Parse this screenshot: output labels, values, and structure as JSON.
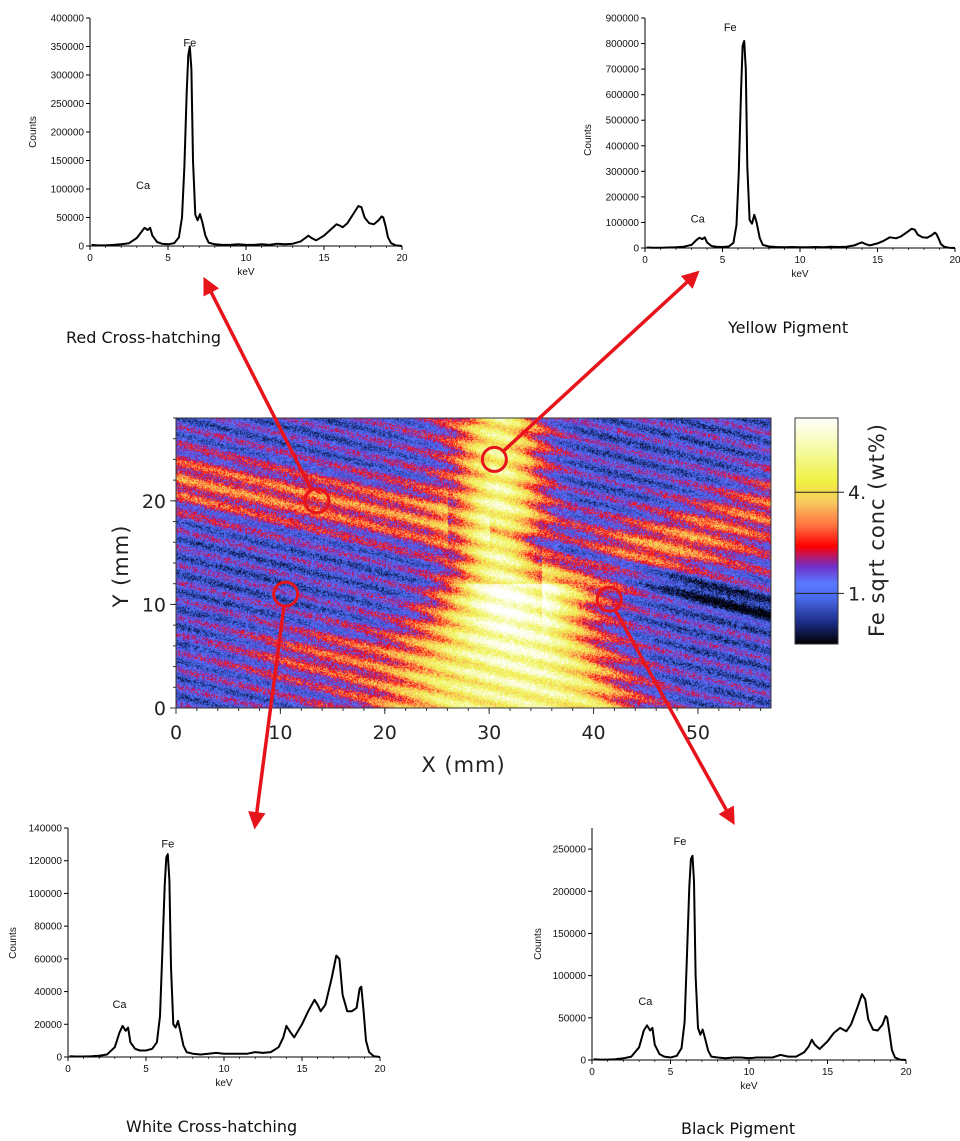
{
  "chart_data": [
    {
      "type": "line",
      "title": "Red Cross-hatching",
      "xlabel": "keV",
      "ylabel": "Counts",
      "xlim": [
        0,
        20
      ],
      "ylim": [
        0,
        400000
      ],
      "xticks": [
        "0",
        "5",
        "10",
        "15",
        "20"
      ],
      "yticks": [
        "0",
        "50000",
        "100000",
        "150000",
        "200000",
        "250000",
        "300000",
        "350000",
        "400000"
      ],
      "annotations": [
        {
          "text": "Fe",
          "x": 6.4,
          "y": 350000
        },
        {
          "text": "Ca",
          "x": 3.4,
          "y": 100000
        }
      ],
      "series": [
        {
          "x": [
            0.1,
            0.5,
            1,
            1.5,
            2,
            2.5,
            3,
            3.3,
            3.5,
            3.7,
            3.85,
            4.0,
            4.3,
            4.6,
            5.0,
            5.4,
            5.7,
            5.9,
            6.05,
            6.2,
            6.3,
            6.4,
            6.5,
            6.6,
            6.75,
            6.9,
            7.05,
            7.2,
            7.4,
            7.6,
            8.0,
            8.5,
            9.0,
            9.5,
            10,
            10.5,
            11,
            11.5,
            12,
            12.5,
            13,
            13.5,
            13.8,
            14.0,
            14.2,
            14.5,
            15.0,
            15.4,
            15.8,
            16.0,
            16.2,
            16.5,
            16.9,
            17.2,
            17.4,
            17.6,
            17.9,
            18.2,
            18.5,
            18.7,
            18.8,
            18.95,
            19.1,
            19.3,
            19.6,
            20.0
          ],
          "values": [
            2000,
            1000,
            1000,
            2000,
            3000,
            5000,
            14000,
            25000,
            32000,
            28000,
            32000,
            18000,
            7000,
            4000,
            3000,
            5000,
            15000,
            50000,
            140000,
            270000,
            335000,
            350000,
            310000,
            150000,
            55000,
            45000,
            56000,
            42000,
            18000,
            6000,
            3000,
            2000,
            2000,
            3000,
            2000,
            2000,
            3000,
            2000,
            4000,
            3000,
            4000,
            8000,
            14000,
            18000,
            14000,
            10000,
            18000,
            28000,
            38000,
            36000,
            33000,
            40000,
            57000,
            70000,
            68000,
            50000,
            40000,
            38000,
            45000,
            52000,
            50000,
            35000,
            15000,
            5000,
            1000,
            0
          ]
        }
      ]
    },
    {
      "type": "line",
      "title": "Yellow Pigment",
      "xlabel": "keV",
      "ylabel": "Counts",
      "xlim": [
        0,
        20
      ],
      "ylim": [
        0,
        900000
      ],
      "xticks": [
        "0",
        "5",
        "10",
        "15",
        "20"
      ],
      "yticks": [
        "0",
        "100000",
        "200000",
        "300000",
        "400000",
        "500000",
        "600000",
        "700000",
        "800000",
        "900000"
      ],
      "annotations": [
        {
          "text": "Fe",
          "x": 5.5,
          "y": 850000
        },
        {
          "text": "Ca",
          "x": 3.4,
          "y": 100000
        }
      ],
      "series": [
        {
          "x": [
            0.1,
            0.5,
            1,
            1.5,
            2,
            2.5,
            3,
            3.3,
            3.5,
            3.7,
            3.85,
            4.0,
            4.3,
            4.6,
            5.0,
            5.4,
            5.7,
            5.9,
            6.05,
            6.2,
            6.3,
            6.4,
            6.5,
            6.6,
            6.75,
            6.9,
            7.05,
            7.2,
            7.4,
            7.6,
            8.0,
            8.5,
            9.0,
            9.5,
            10,
            10.5,
            11,
            11.5,
            12,
            12.5,
            13,
            13.5,
            13.8,
            14.0,
            14.2,
            14.5,
            15.0,
            15.4,
            15.8,
            16.0,
            16.2,
            16.5,
            16.9,
            17.2,
            17.4,
            17.6,
            17.9,
            18.2,
            18.5,
            18.7,
            18.8,
            18.95,
            19.1,
            19.3,
            19.6,
            20.0
          ],
          "values": [
            2000,
            1000,
            1000,
            2000,
            3000,
            5000,
            12000,
            30000,
            40000,
            35000,
            42000,
            22000,
            8000,
            5000,
            4000,
            6000,
            20000,
            90000,
            300000,
            620000,
            790000,
            810000,
            700000,
            320000,
            110000,
            95000,
            130000,
            100000,
            40000,
            12000,
            6000,
            4000,
            3000,
            4000,
            3000,
            3000,
            4000,
            3000,
            5000,
            4000,
            5000,
            10000,
            18000,
            22000,
            16000,
            10000,
            18000,
            28000,
            42000,
            40000,
            38000,
            45000,
            62000,
            75000,
            72000,
            52000,
            42000,
            40000,
            50000,
            60000,
            55000,
            36000,
            15000,
            5000,
            1000,
            0
          ]
        }
      ]
    },
    {
      "type": "line",
      "title": "White Cross-hatching",
      "xlabel": "keV",
      "ylabel": "Counts",
      "xlim": [
        0,
        20
      ],
      "ylim": [
        0,
        140000
      ],
      "xticks": [
        "0",
        "5",
        "10",
        "15",
        "20"
      ],
      "yticks": [
        "0",
        "20000",
        "40000",
        "60000",
        "80000",
        "100000",
        "120000",
        "140000"
      ],
      "annotations": [
        {
          "text": "Fe",
          "x": 6.4,
          "y": 128000
        },
        {
          "text": "Ca",
          "x": 3.3,
          "y": 30000
        }
      ],
      "series": [
        {
          "x": [
            0.1,
            0.5,
            1,
            1.5,
            2,
            2.5,
            3,
            3.3,
            3.5,
            3.7,
            3.85,
            4.0,
            4.3,
            4.6,
            5.0,
            5.4,
            5.7,
            5.9,
            6.05,
            6.2,
            6.3,
            6.4,
            6.5,
            6.6,
            6.75,
            6.9,
            7.05,
            7.2,
            7.4,
            7.6,
            8.0,
            8.5,
            9.0,
            9.5,
            10,
            10.5,
            11,
            11.5,
            12,
            12.5,
            13,
            13.5,
            13.8,
            14.0,
            14.2,
            14.5,
            15.0,
            15.4,
            15.8,
            16.0,
            16.2,
            16.5,
            16.9,
            17.2,
            17.4,
            17.6,
            17.9,
            18.2,
            18.5,
            18.7,
            18.8,
            18.95,
            19.1,
            19.3,
            19.6,
            20.0
          ],
          "values": [
            500,
            300,
            300,
            500,
            800,
            1500,
            6000,
            15000,
            19000,
            16000,
            18000,
            9000,
            5000,
            4000,
            4000,
            5000,
            9000,
            25000,
            65000,
            105000,
            122000,
            124000,
            108000,
            55000,
            20000,
            18000,
            22000,
            16000,
            7000,
            3000,
            2000,
            1500,
            2000,
            2500,
            2000,
            2000,
            2000,
            2000,
            3000,
            2500,
            3000,
            6000,
            12000,
            19000,
            16000,
            12000,
            20000,
            28000,
            35000,
            32000,
            28000,
            32000,
            48000,
            62000,
            60000,
            38000,
            28000,
            28000,
            30000,
            42000,
            43000,
            28000,
            10000,
            3000,
            500,
            0
          ]
        }
      ]
    },
    {
      "type": "line",
      "title": "Black Pigment",
      "xlabel": "keV",
      "ylabel": "Counts",
      "xlim": [
        0,
        20
      ],
      "ylim": [
        0,
        275000
      ],
      "xticks": [
        "0",
        "5",
        "10",
        "15",
        "20"
      ],
      "yticks": [
        "0",
        "50000",
        "100000",
        "150000",
        "200000",
        "250000"
      ],
      "annotations": [
        {
          "text": "Fe",
          "x": 5.6,
          "y": 255000
        },
        {
          "text": "Ca",
          "x": 3.4,
          "y": 65000
        }
      ],
      "series": [
        {
          "x": [
            0.1,
            0.5,
            1,
            1.5,
            2,
            2.5,
            3,
            3.3,
            3.5,
            3.7,
            3.85,
            4.0,
            4.3,
            4.6,
            5.0,
            5.4,
            5.7,
            5.9,
            6.05,
            6.2,
            6.3,
            6.4,
            6.5,
            6.6,
            6.75,
            6.9,
            7.05,
            7.2,
            7.4,
            7.6,
            8.0,
            8.5,
            9.0,
            9.5,
            10,
            10.5,
            11,
            11.5,
            12,
            12.5,
            13,
            13.5,
            13.8,
            14.0,
            14.2,
            14.5,
            15.0,
            15.4,
            15.8,
            16.0,
            16.2,
            16.5,
            16.9,
            17.2,
            17.4,
            17.6,
            17.9,
            18.2,
            18.5,
            18.7,
            18.8,
            18.95,
            19.1,
            19.3,
            19.6,
            20.0
          ],
          "values": [
            1000,
            500,
            500,
            1000,
            2000,
            4000,
            15000,
            35000,
            41000,
            35000,
            38000,
            18000,
            7000,
            4000,
            3000,
            5000,
            14000,
            45000,
            125000,
            205000,
            238000,
            242000,
            212000,
            100000,
            38000,
            30000,
            36000,
            26000,
            11000,
            4000,
            3000,
            2000,
            3000,
            3000,
            2000,
            3000,
            3000,
            3000,
            6000,
            4000,
            4000,
            9000,
            16000,
            24000,
            18000,
            13000,
            22000,
            32000,
            38000,
            36000,
            34000,
            42000,
            62000,
            78000,
            72000,
            48000,
            36000,
            35000,
            42000,
            52000,
            50000,
            32000,
            12000,
            3000,
            500,
            0
          ]
        }
      ]
    },
    {
      "type": "heatmap",
      "xlabel": "X (mm)",
      "ylabel": "Y (mm)",
      "xlim": [
        0,
        57
      ],
      "ylim": [
        0,
        28
      ],
      "xticks": [
        "0",
        "10",
        "20",
        "30",
        "40",
        "50"
      ],
      "yticks": [
        "0",
        "10",
        "20"
      ],
      "colorbar": {
        "label": "Fe sqrt conc (wt%)",
        "tick_labels": [
          "4.",
          "1."
        ],
        "tick_values": [
          4,
          1
        ],
        "range": [
          -0.5,
          6.2
        ],
        "stops": [
          {
            "v": -0.5,
            "color": "#000000"
          },
          {
            "v": 0.1,
            "color": "#1a2a80"
          },
          {
            "v": 0.9,
            "color": "#4c6cf0"
          },
          {
            "v": 1.3,
            "color": "#5a78ff"
          },
          {
            "v": 1.8,
            "color": "#7030c8"
          },
          {
            "v": 2.4,
            "color": "#ff0000"
          },
          {
            "v": 3.0,
            "color": "#ff7040"
          },
          {
            "v": 3.7,
            "color": "#f8c860"
          },
          {
            "v": 4.3,
            "color": "#f0f040"
          },
          {
            "v": 5.2,
            "color": "#f4fa9c"
          },
          {
            "v": 6.2,
            "color": "#ffffff"
          }
        ]
      },
      "markers": [
        {
          "x": 13.5,
          "y": 20,
          "links_to": "Red Cross-hatching"
        },
        {
          "x": 30.5,
          "y": 24,
          "links_to": "Yellow Pigment"
        },
        {
          "x": 10.5,
          "y": 11,
          "links_to": "White Cross-hatching"
        },
        {
          "x": 41.5,
          "y": 10.5,
          "links_to": "Black Pigment"
        }
      ],
      "marker_color": "#e8141c",
      "arrow_color": "#e8141c"
    }
  ]
}
